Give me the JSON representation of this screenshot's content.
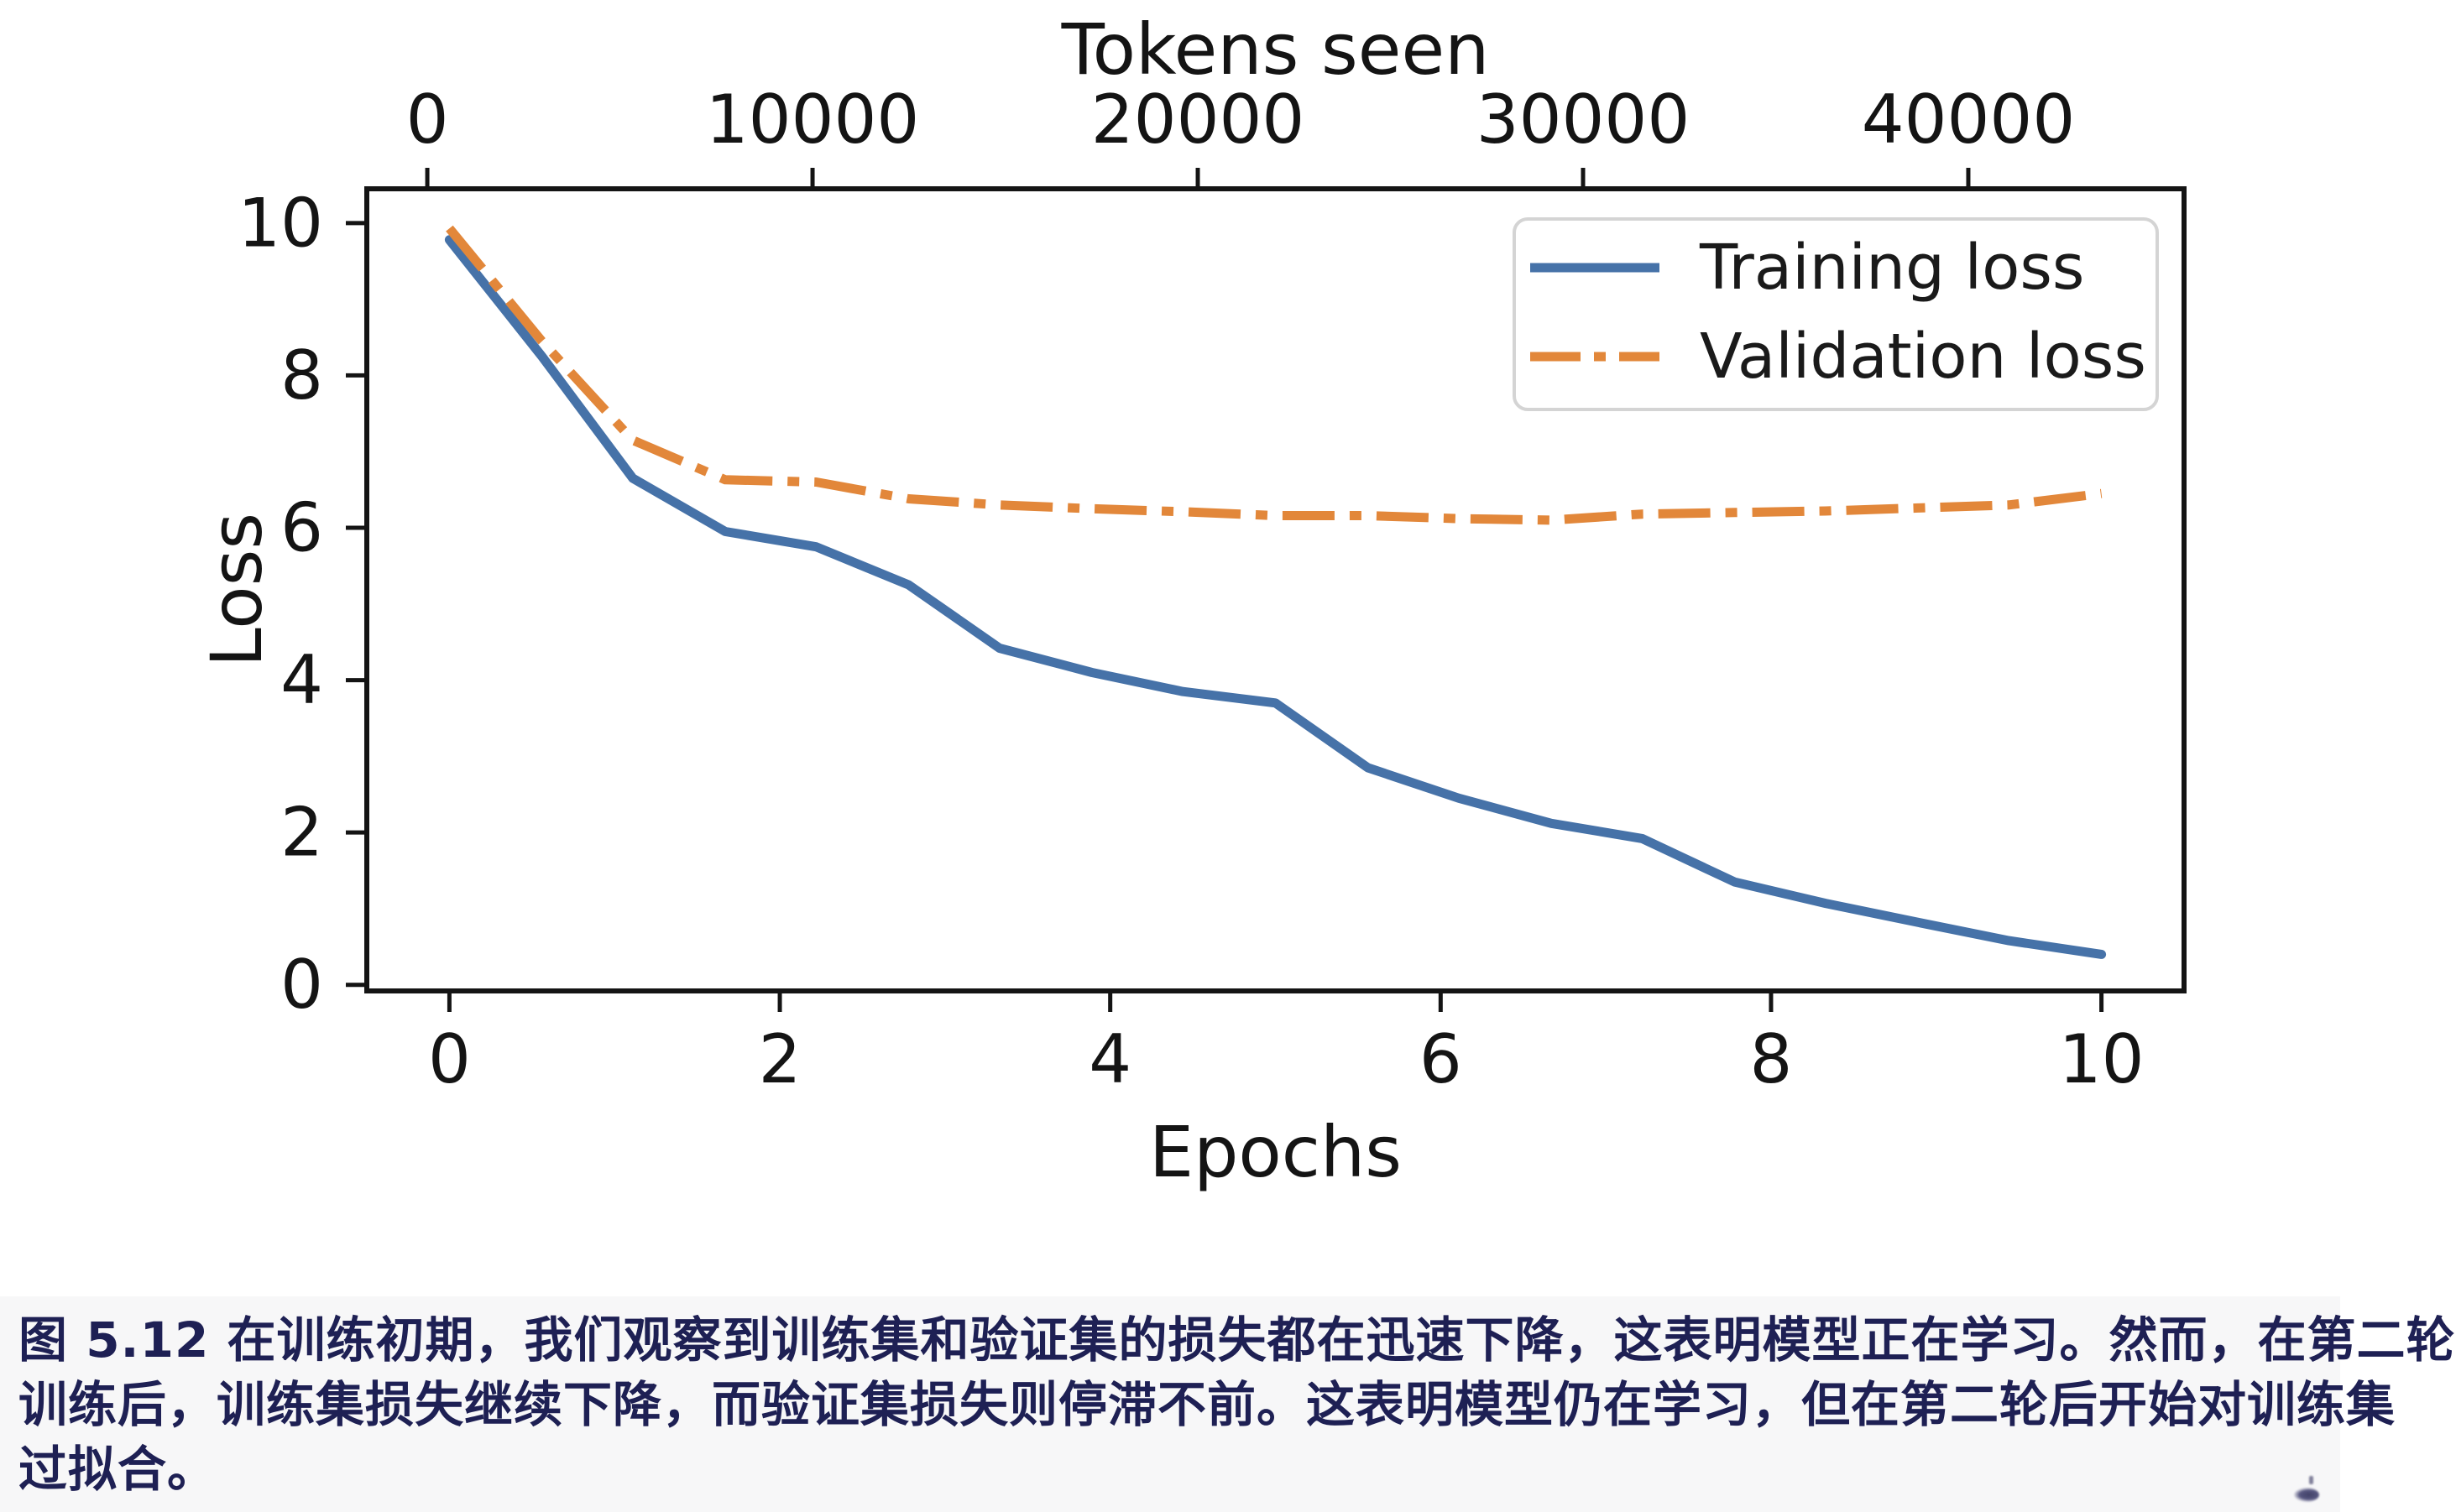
{
  "chart_data": {
    "type": "line",
    "title": "",
    "top_axis": {
      "label": "Tokens seen",
      "ticks": [
        0,
        10000,
        20000,
        30000,
        40000
      ],
      "lim": [
        -1570,
        45600
      ]
    },
    "xlabel": "Epochs",
    "ylabel": "Loss",
    "xticks": [
      0,
      2,
      4,
      6,
      8,
      10
    ],
    "yticks": [
      0,
      2,
      4,
      6,
      8,
      10
    ],
    "xlim": [
      -0.5,
      10.5
    ],
    "ylim": [
      -0.08,
      10.45
    ],
    "grid": false,
    "legend": {
      "position": "upper right"
    },
    "series": [
      {
        "name": "Training loss",
        "color": "#4672a8",
        "style": "solid",
        "x": [
          0,
          0.56,
          1.11,
          1.67,
          2.22,
          2.78,
          3.33,
          3.89,
          4.44,
          5.0,
          5.56,
          6.11,
          6.67,
          7.22,
          7.78,
          8.33,
          8.89,
          9.44,
          10.0
        ],
        "values": [
          9.78,
          8.25,
          6.65,
          5.95,
          5.75,
          5.25,
          4.42,
          4.1,
          3.85,
          3.7,
          2.85,
          2.45,
          2.12,
          1.92,
          1.35,
          1.07,
          0.82,
          0.58,
          0.4
        ]
      },
      {
        "name": "Validation loss",
        "color": "#e2873a",
        "style": "dashdot",
        "x": [
          0,
          0.56,
          1.11,
          1.67,
          2.22,
          2.78,
          3.33,
          3.89,
          4.44,
          5.0,
          5.56,
          6.11,
          6.67,
          7.22,
          7.78,
          8.33,
          8.89,
          9.44,
          10.0
        ],
        "values": [
          9.93,
          8.45,
          7.15,
          6.63,
          6.6,
          6.38,
          6.3,
          6.25,
          6.21,
          6.16,
          6.16,
          6.12,
          6.1,
          6.18,
          6.2,
          6.22,
          6.26,
          6.3,
          6.45
        ]
      }
    ],
    "axis_color": "#141414",
    "legend_border_color": "#d4d4d4"
  },
  "caption": {
    "color": "#1e2054",
    "lines": [
      "图 5.12 在训练初期，我们观察到训练集和验证集的损失都在迅速下降，这表明模型正在学习。然而，在第二轮",
      "训练后，训练集损失继续下降，而验证集损失则停滞不前。这表明模型仍在学习，但在第二轮后开始对训练集",
      "过拟合。"
    ]
  }
}
